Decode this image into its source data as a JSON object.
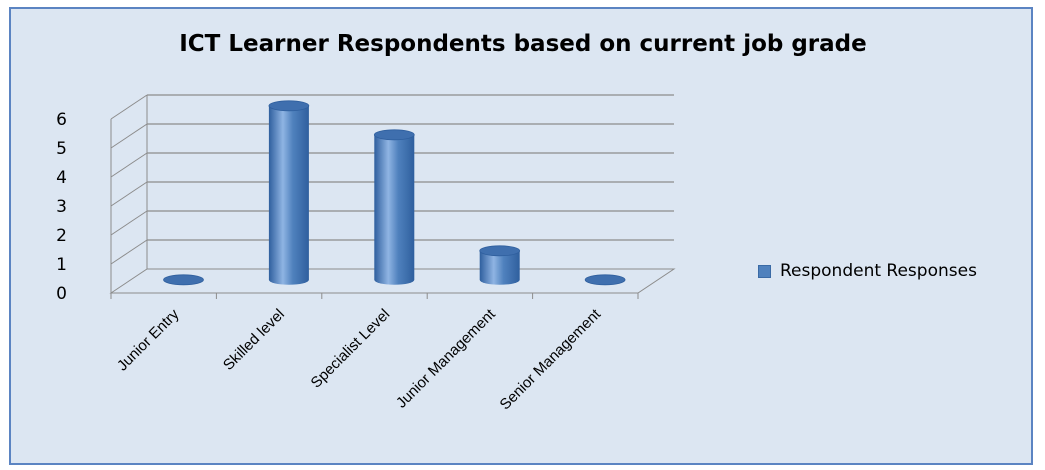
{
  "chart_data": {
    "type": "bar",
    "title": "ICT Learner Respondents based on current job grade",
    "categories": [
      "Junior Entry",
      "Skilled level",
      "Specialist Level",
      "Junior Management",
      "Senior Management"
    ],
    "series": [
      {
        "name": "Respondent Responses",
        "values": [
          0,
          6,
          5,
          1,
          0
        ]
      }
    ],
    "ylim": [
      0,
      6
    ],
    "yticks": [
      "0",
      "1",
      "2",
      "3",
      "4",
      "5",
      "6"
    ],
    "xlabel": "",
    "ylabel": "",
    "grid": true,
    "legend": "right",
    "style": "3d-cylinder",
    "colors": {
      "bar": "#4f81bd",
      "bar_dark": "#2f5f9e",
      "bar_light": "#8fb4e3",
      "background": "#dce6f2",
      "border": "#5b84c2",
      "grid": "#8c8c8c"
    }
  }
}
